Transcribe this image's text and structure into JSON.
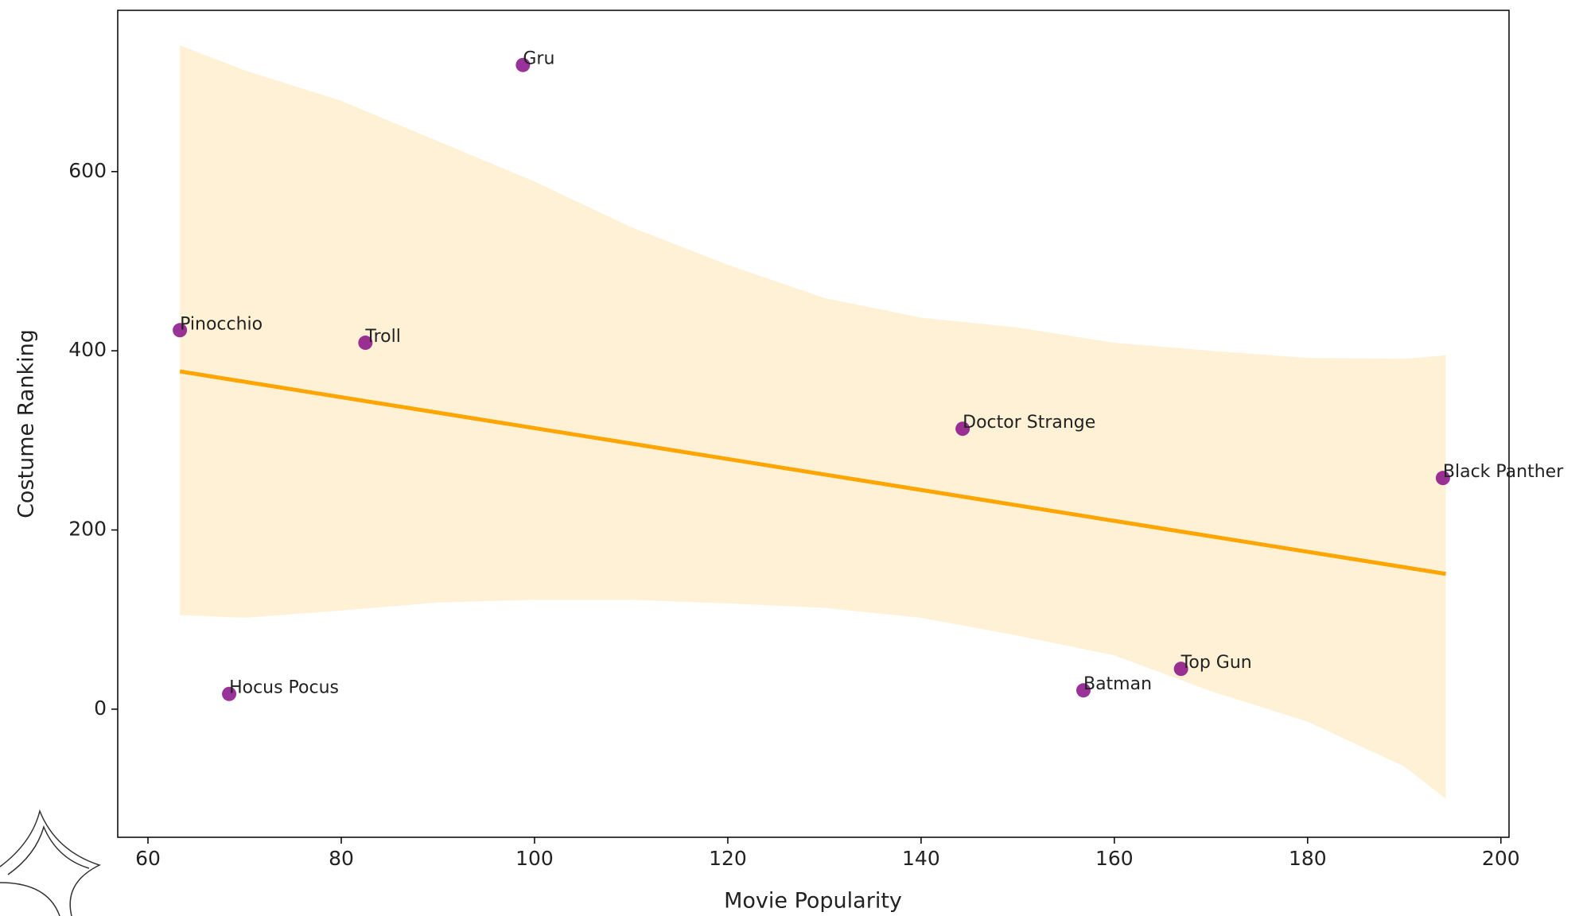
{
  "chart_data": {
    "type": "scatter",
    "x_label": "Movie Popularity",
    "y_label": "Costume Ranking",
    "labels": [
      "Gru",
      "Pinocchio",
      "Troll",
      "Hocus Pocus",
      "Doctor Strange",
      "Black Panther",
      "Top Gun",
      "Batman"
    ],
    "x": [
      98.8,
      63.3,
      82.5,
      68.4,
      144.3,
      194.0,
      166.9,
      156.8
    ],
    "values": [
      719,
      423,
      409,
      17,
      313,
      258,
      45,
      21
    ],
    "color": "#800080",
    "regression": {
      "color": "#ffa500",
      "x": [
        63.3,
        194.3
      ],
      "values": [
        377,
        151
      ]
    },
    "band": {
      "color": "#ffa500",
      "x": [
        63.3,
        70,
        80,
        90,
        100,
        110,
        120,
        130,
        140,
        150,
        160,
        170,
        180,
        190,
        194.3
      ],
      "upper": [
        741,
        713,
        679,
        634,
        589,
        538,
        496,
        459,
        437,
        426,
        409,
        400,
        392,
        391,
        395
      ],
      "lower": [
        105,
        102,
        110,
        119,
        122,
        122,
        118,
        113,
        102,
        82,
        60,
        20,
        -14,
        -64,
        -100
      ]
    },
    "xlim": [
      56.87,
      200.84
    ],
    "ylim": [
      -143,
      780
    ],
    "xticks": [
      60,
      80,
      100,
      120,
      140,
      160,
      180,
      200
    ],
    "yticks": [
      0,
      200,
      400,
      600
    ]
  }
}
